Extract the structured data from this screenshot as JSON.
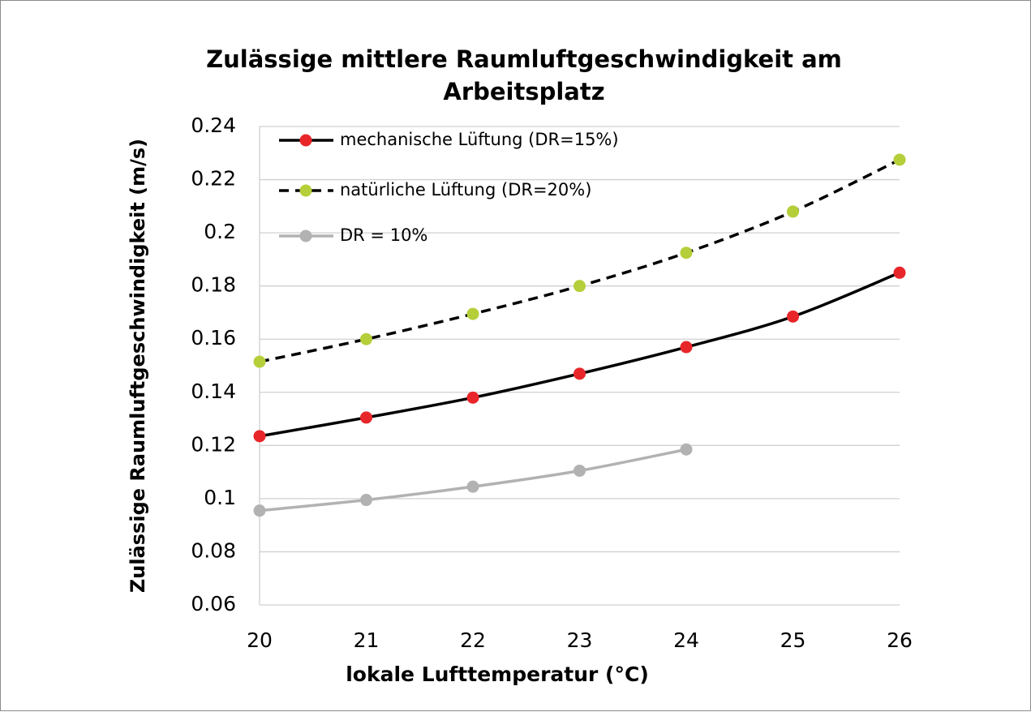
{
  "chart_data": {
    "type": "line",
    "title": "Zulässige mittlere Raumluftgeschwindigkeit am Arbeitsplatz",
    "x_label": "lokale Lufttemperatur (°C)",
    "y_label": "Zulässige Raumluftgeschwindigkeit (m/s)",
    "x": [
      20,
      21,
      22,
      23,
      24,
      25,
      26
    ],
    "xlim": [
      20,
      26
    ],
    "xticks": [
      20,
      21,
      22,
      23,
      24,
      25,
      26
    ],
    "ylim": [
      0.06,
      0.24
    ],
    "yticks": [
      0.06,
      0.08,
      0.1,
      0.12,
      0.14,
      0.16,
      0.18,
      0.2,
      0.22,
      0.24
    ],
    "grid": true,
    "legend": "top-left",
    "series": [
      {
        "name": "mechanische Lüftung (DR=15%)",
        "color": "#e8262a",
        "line_color": "#000000",
        "line_style": "solid",
        "values": [
          0.1235,
          0.1305,
          0.138,
          0.147,
          0.157,
          0.1685,
          0.185
        ]
      },
      {
        "name": "natürliche Lüftung (DR=20%)",
        "color": "#b5cf3a",
        "line_color": "#000000",
        "line_style": "dashed",
        "values": [
          0.1515,
          0.16,
          0.1695,
          0.18,
          0.1925,
          0.208,
          0.2275
        ]
      },
      {
        "name": "DR = 10%",
        "color": "#b2b2b2",
        "line_color": "#b2b2b2",
        "line_style": "solid",
        "values": [
          0.0955,
          0.0995,
          0.1045,
          0.1105,
          0.1185,
          null,
          null
        ]
      }
    ]
  }
}
